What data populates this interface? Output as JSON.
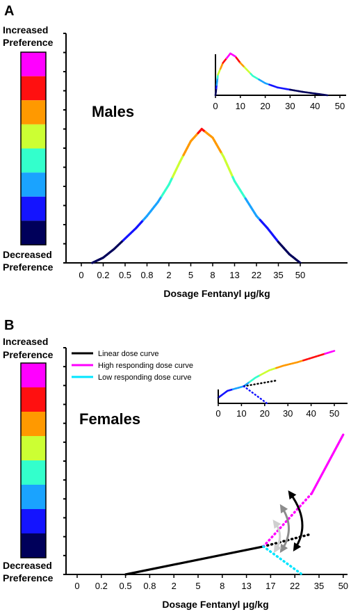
{
  "chart_data": [
    {
      "panel": "A",
      "type": "line",
      "group_label": "Males",
      "scale_top_label": [
        "Increased",
        "Preference"
      ],
      "scale_bottom_label": [
        "Decreased",
        "Preference"
      ],
      "scale_colors": [
        "#ff00ff",
        "#ff1010",
        "#ff9900",
        "#ccff33",
        "#33ffcc",
        "#1aa3ff",
        "#1414ff",
        "#00005a"
      ],
      "xlabel": "Dosage Fentanyl μg/kg",
      "categories": [
        "0",
        "0.2",
        "0.5",
        "0.8",
        "2",
        "5",
        "8",
        "13",
        "22",
        "35",
        "50"
      ],
      "y_range": [
        0,
        1
      ],
      "series": [
        {
          "points": [
            [
              0.5,
              0.0
            ],
            [
              1.0,
              0.03
            ],
            [
              1.5,
              0.08
            ],
            [
              2.0,
              0.14
            ],
            [
              2.5,
              0.2
            ],
            [
              3.0,
              0.27
            ],
            [
              3.5,
              0.35
            ],
            [
              4.0,
              0.45
            ],
            [
              4.5,
              0.58
            ],
            [
              5.0,
              0.7
            ],
            [
              5.5,
              0.77
            ],
            [
              6.0,
              0.72
            ],
            [
              6.5,
              0.61
            ],
            [
              7.0,
              0.47
            ],
            [
              7.5,
              0.37
            ],
            [
              8.0,
              0.27
            ],
            [
              8.5,
              0.2
            ],
            [
              9.0,
              0.12
            ],
            [
              9.5,
              0.05
            ],
            [
              10.0,
              0.0
            ]
          ]
        }
      ],
      "inset": {
        "type": "line",
        "x_ticks": [
          "0",
          "10",
          "20",
          "30",
          "40",
          "50"
        ],
        "xlim": [
          0,
          50
        ],
        "series": [
          {
            "points": [
              [
                0,
                0
              ],
              [
                1,
                0.48
              ],
              [
                3,
                0.75
              ],
              [
                6,
                0.97
              ],
              [
                8,
                0.9
              ],
              [
                10,
                0.75
              ],
              [
                15,
                0.45
              ],
              [
                20,
                0.28
              ],
              [
                25,
                0.18
              ],
              [
                35,
                0.08
              ],
              [
                45,
                0.0
              ]
            ]
          }
        ]
      }
    },
    {
      "panel": "B",
      "type": "line",
      "group_label": "Females",
      "scale_top_label": [
        "Increased",
        "Preference"
      ],
      "scale_bottom_label": [
        "Decreased",
        "Preference"
      ],
      "scale_colors": [
        "#ff00ff",
        "#ff1010",
        "#ff9900",
        "#ccff33",
        "#33ffcc",
        "#1aa3ff",
        "#1414ff",
        "#00005a"
      ],
      "xlabel": "Dosage Fentanyl μg/kg",
      "categories": [
        "0",
        "0.2",
        "0.5",
        "0.8",
        "2",
        "5",
        "8",
        "13",
        "17",
        "22",
        "35",
        "50"
      ],
      "y_range": [
        0,
        1
      ],
      "legend": {
        "position": "top-left",
        "entries": [
          {
            "label": "Linear dose curve",
            "color": "#000000"
          },
          {
            "label": "High responding dose curve",
            "color": "#ff00ff"
          },
          {
            "label": "Low responding dose curve",
            "color": "#00e5ff"
          }
        ]
      },
      "series": [
        {
          "name": "Linear dose curve",
          "color": "#000000",
          "points": [
            [
              2.0,
              0.0
            ],
            [
              7.7,
              0.2
            ]
          ],
          "extension": [
            [
              7.7,
              0.2
            ],
            [
              9.7,
              0.29
            ]
          ]
        },
        {
          "name": "High responding dose curve",
          "color": "#ff00ff",
          "points": [
            [
              9.7,
              0.58
            ],
            [
              11.0,
              1.0
            ]
          ],
          "extension": [
            [
              7.7,
              0.2
            ],
            [
              9.7,
              0.58
            ]
          ]
        },
        {
          "name": "Low responding dose curve",
          "color": "#00e5ff",
          "points": [],
          "extension": [
            [
              7.7,
              0.2
            ],
            [
              9.3,
              0.0
            ]
          ]
        }
      ],
      "inset": {
        "type": "line",
        "x_ticks": [
          "0",
          "10",
          "20",
          "30",
          "40",
          "50"
        ],
        "xlim": [
          0,
          50
        ],
        "series": [
          {
            "points": [
              [
                0,
                0.1
              ],
              [
                4,
                0.22
              ],
              [
                11,
                0.3
              ],
              [
                16,
                0.45
              ],
              [
                22,
                0.58
              ],
              [
                28,
                0.66
              ],
              [
                34,
                0.72
              ],
              [
                42,
                0.82
              ],
              [
                50,
                0.92
              ]
            ]
          },
          {
            "dotted": true,
            "points": [
              [
                11,
                0.3
              ],
              [
                25,
                0.4
              ]
            ]
          },
          {
            "dotted": true,
            "points": [
              [
                11,
                0.3
              ],
              [
                21,
                0.0
              ]
            ]
          }
        ]
      }
    }
  ]
}
